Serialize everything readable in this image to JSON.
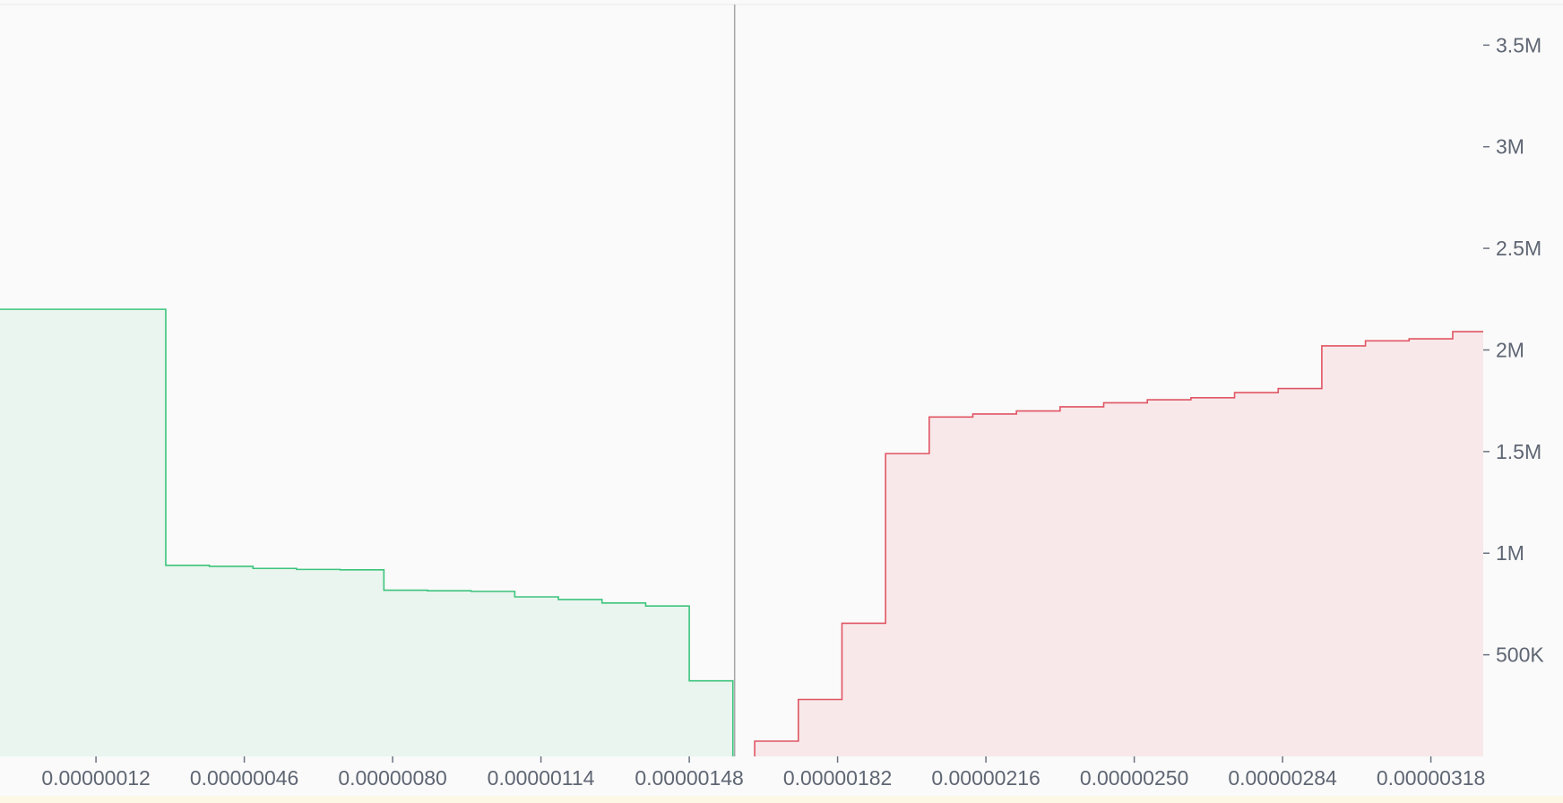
{
  "chart_data": {
    "type": "area",
    "subtype": "order-book-depth",
    "title": "",
    "xlabel": "",
    "ylabel": "",
    "y_axis_position": "right",
    "grid": false,
    "x_range": [
      -1e-07,
      3.3e-06
    ],
    "y_range": [
      0,
      3700000
    ],
    "mid_price": 1.584e-06,
    "x_ticks": [
      {
        "value": 1.2e-07,
        "label": "0.00000012"
      },
      {
        "value": 4.6e-07,
        "label": "0.00000046"
      },
      {
        "value": 8e-07,
        "label": "0.00000080"
      },
      {
        "value": 1.14e-06,
        "label": "0.00000114"
      },
      {
        "value": 1.48e-06,
        "label": "0.00000148"
      },
      {
        "value": 1.82e-06,
        "label": "0.00000182"
      },
      {
        "value": 2.16e-06,
        "label": "0.00000216"
      },
      {
        "value": 2.5e-06,
        "label": "0.00000250"
      },
      {
        "value": 2.84e-06,
        "label": "0.00000284"
      },
      {
        "value": 3.18e-06,
        "label": "0.00000318"
      }
    ],
    "y_ticks": [
      {
        "value": 500000,
        "label": "500K"
      },
      {
        "value": 1000000,
        "label": "1M"
      },
      {
        "value": 1500000,
        "label": "1.5M"
      },
      {
        "value": 2000000,
        "label": "2M"
      },
      {
        "value": 2500000,
        "label": "2.5M"
      },
      {
        "value": 3000000,
        "label": "3M"
      },
      {
        "value": 3500000,
        "label": "3.5M"
      }
    ],
    "series": [
      {
        "side": "bids",
        "color": "#3cc47c",
        "fill": "#e9f5ee",
        "points": [
          {
            "x": -1e-07,
            "y": 2200000
          },
          {
            "x": 2.8e-07,
            "y": 2200000
          },
          {
            "x": 2.8e-07,
            "y": 940000
          },
          {
            "x": 3.8e-07,
            "y": 940000
          },
          {
            "x": 3.8e-07,
            "y": 935000
          },
          {
            "x": 4.8e-07,
            "y": 935000
          },
          {
            "x": 4.8e-07,
            "y": 925000
          },
          {
            "x": 5.8e-07,
            "y": 925000
          },
          {
            "x": 5.8e-07,
            "y": 920000
          },
          {
            "x": 6.8e-07,
            "y": 920000
          },
          {
            "x": 6.8e-07,
            "y": 918000
          },
          {
            "x": 7.8e-07,
            "y": 918000
          },
          {
            "x": 7.8e-07,
            "y": 818000
          },
          {
            "x": 8.8e-07,
            "y": 818000
          },
          {
            "x": 8.8e-07,
            "y": 815000
          },
          {
            "x": 9.8e-07,
            "y": 815000
          },
          {
            "x": 9.8e-07,
            "y": 812000
          },
          {
            "x": 1.08e-06,
            "y": 812000
          },
          {
            "x": 1.08e-06,
            "y": 785000
          },
          {
            "x": 1.18e-06,
            "y": 785000
          },
          {
            "x": 1.18e-06,
            "y": 772000
          },
          {
            "x": 1.28e-06,
            "y": 772000
          },
          {
            "x": 1.28e-06,
            "y": 755000
          },
          {
            "x": 1.38e-06,
            "y": 755000
          },
          {
            "x": 1.38e-06,
            "y": 740000
          },
          {
            "x": 1.48e-06,
            "y": 740000
          },
          {
            "x": 1.48e-06,
            "y": 372000
          },
          {
            "x": 1.58e-06,
            "y": 372000
          },
          {
            "x": 1.58e-06,
            "y": 0
          }
        ]
      },
      {
        "side": "asks",
        "color": "#e05563",
        "fill": "#f8e8ea",
        "points": [
          {
            "x": 1.63e-06,
            "y": 0
          },
          {
            "x": 1.63e-06,
            "y": 75000
          },
          {
            "x": 1.73e-06,
            "y": 75000
          },
          {
            "x": 1.73e-06,
            "y": 280000
          },
          {
            "x": 1.83e-06,
            "y": 280000
          },
          {
            "x": 1.83e-06,
            "y": 655000
          },
          {
            "x": 1.93e-06,
            "y": 655000
          },
          {
            "x": 1.93e-06,
            "y": 1490000
          },
          {
            "x": 2.03e-06,
            "y": 1490000
          },
          {
            "x": 2.03e-06,
            "y": 1670000
          },
          {
            "x": 2.13e-06,
            "y": 1670000
          },
          {
            "x": 2.13e-06,
            "y": 1685000
          },
          {
            "x": 2.23e-06,
            "y": 1685000
          },
          {
            "x": 2.23e-06,
            "y": 1700000
          },
          {
            "x": 2.33e-06,
            "y": 1700000
          },
          {
            "x": 2.33e-06,
            "y": 1720000
          },
          {
            "x": 2.43e-06,
            "y": 1720000
          },
          {
            "x": 2.43e-06,
            "y": 1740000
          },
          {
            "x": 2.53e-06,
            "y": 1740000
          },
          {
            "x": 2.53e-06,
            "y": 1755000
          },
          {
            "x": 2.63e-06,
            "y": 1755000
          },
          {
            "x": 2.63e-06,
            "y": 1765000
          },
          {
            "x": 2.73e-06,
            "y": 1765000
          },
          {
            "x": 2.73e-06,
            "y": 1790000
          },
          {
            "x": 2.83e-06,
            "y": 1790000
          },
          {
            "x": 2.83e-06,
            "y": 1810000
          },
          {
            "x": 2.93e-06,
            "y": 1810000
          },
          {
            "x": 2.93e-06,
            "y": 2020000
          },
          {
            "x": 3.03e-06,
            "y": 2020000
          },
          {
            "x": 3.03e-06,
            "y": 2045000
          },
          {
            "x": 3.13e-06,
            "y": 2045000
          },
          {
            "x": 3.13e-06,
            "y": 2055000
          },
          {
            "x": 3.23e-06,
            "y": 2055000
          },
          {
            "x": 3.23e-06,
            "y": 2090000
          },
          {
            "x": 3.3e-06,
            "y": 2090000
          }
        ]
      }
    ]
  }
}
